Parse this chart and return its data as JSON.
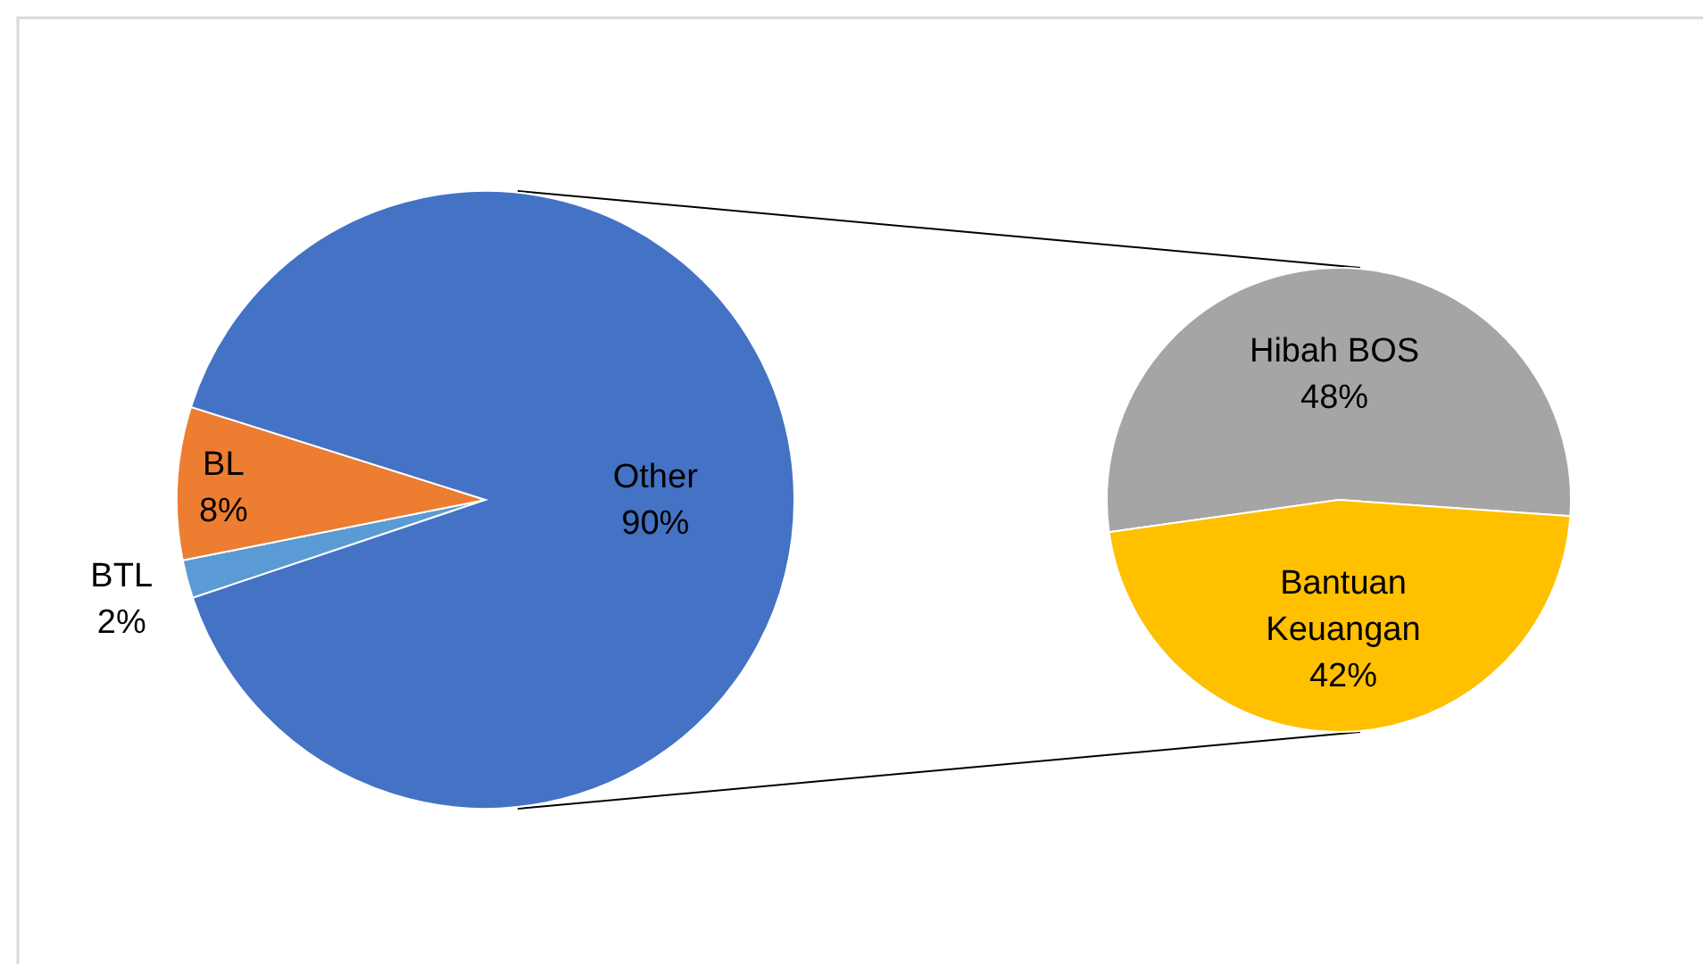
{
  "chart_data": [
    {
      "type": "pie",
      "categories": [
        "BTL",
        "BL",
        "Other"
      ],
      "values": [
        2,
        8,
        90
      ],
      "colors": [
        "#5b9bd5",
        "#ed7d31",
        "#4472c4"
      ],
      "value_labels": [
        "2%",
        "8%",
        "90%"
      ]
    },
    {
      "type": "pie",
      "categories": [
        "Hibah BOS",
        "Bantuan Keuangan"
      ],
      "values": [
        48,
        42
      ],
      "colors": [
        "#a5a5a5",
        "#ffc000"
      ],
      "value_labels": [
        "48%",
        "42%"
      ]
    }
  ]
}
